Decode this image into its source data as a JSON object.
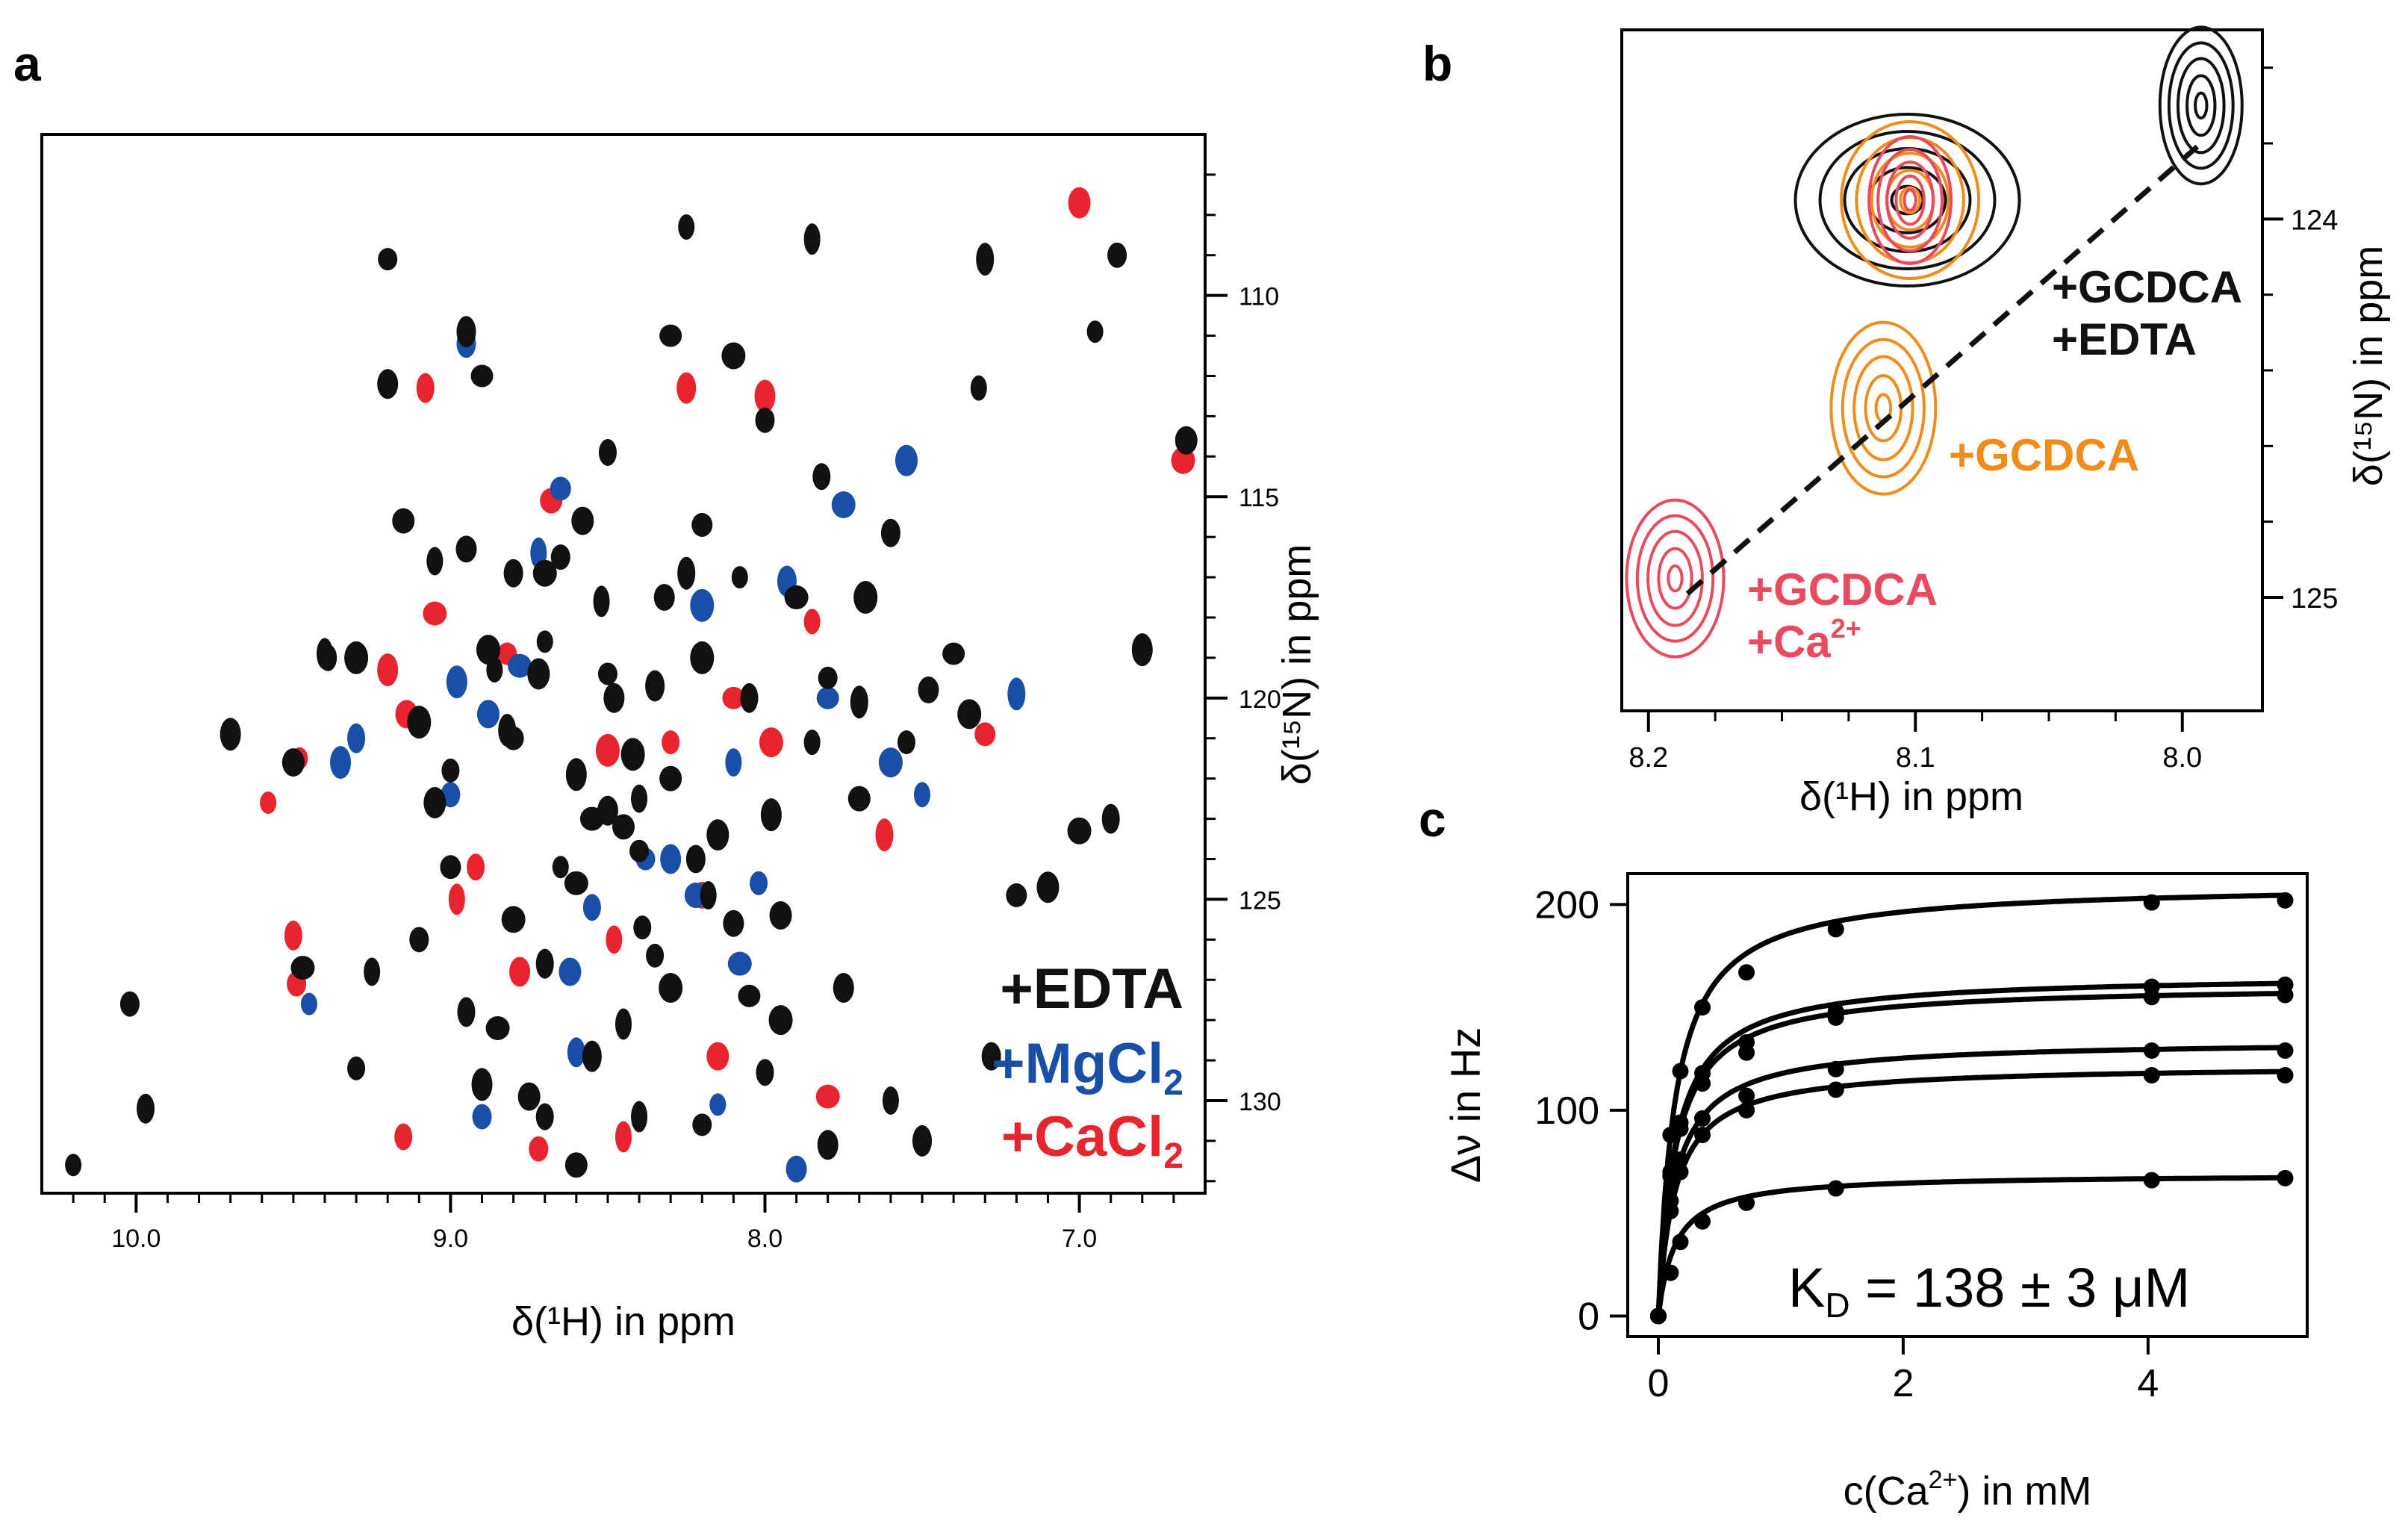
{
  "panel_labels": {
    "a": "a",
    "b": "b",
    "c": "c"
  },
  "colors": {
    "edta": "#111111",
    "mg": "#1a4fa8",
    "ca": "#e8242e",
    "gcdca": "#f08c1a",
    "gcdca_ca": "#e84a5f"
  },
  "chart_data": [
    {
      "panel": "a",
      "type": "scatter",
      "title": "",
      "xlabel": "δ(¹H) in ppm",
      "ylabel": "δ(¹⁵N) in ppm",
      "xlim": [
        10.3,
        6.6
      ],
      "ylim": [
        106.0,
        132.3
      ],
      "xticks": [
        10.0,
        9.0,
        8.0,
        7.0
      ],
      "xtick_labels": [
        "10.0",
        "9.0",
        "8.0",
        "7.0"
      ],
      "yticks": [
        110,
        115,
        120,
        125,
        130
      ],
      "ytick_labels": [
        "110",
        "115",
        "120",
        "125",
        "130"
      ],
      "legend": [
        {
          "label": "+EDTA",
          "sub": "",
          "color": "#111111"
        },
        {
          "label": "+MgCl",
          "sub": "2",
          "color": "#1a4fa8"
        },
        {
          "label": "+CaCl",
          "sub": "2",
          "color": "#e8242e"
        }
      ],
      "legend_position": "bottom-right",
      "series": [
        {
          "name": "+EDTA",
          "color": "#111111",
          "points": [
            [
              10.2,
              131.6
            ],
            [
              9.97,
              130.2
            ],
            [
              10.02,
              127.6
            ],
            [
              9.7,
              120.9
            ],
            [
              9.5,
              121.6
            ],
            [
              9.47,
              126.7
            ],
            [
              9.4,
              118.9
            ],
            [
              9.39,
              119.0
            ],
            [
              9.2,
              109.1
            ],
            [
              9.2,
              112.2
            ],
            [
              9.15,
              115.6
            ],
            [
              9.1,
              120.6
            ],
            [
              9.05,
              116.6
            ],
            [
              9.0,
              121.8
            ],
            [
              8.95,
              110.9
            ],
            [
              8.95,
              116.3
            ],
            [
              8.9,
              112.0
            ],
            [
              8.88,
              118.8
            ],
            [
              8.86,
              119.3
            ],
            [
              8.82,
              120.8
            ],
            [
              8.8,
              116.9
            ],
            [
              8.8,
              121.0
            ],
            [
              8.72,
              119.4
            ],
            [
              8.7,
              116.9
            ],
            [
              8.7,
              118.6
            ],
            [
              8.7,
              126.6
            ],
            [
              8.65,
              116.5
            ],
            [
              8.6,
              121.9
            ],
            [
              8.58,
              115.6
            ],
            [
              8.55,
              123.0
            ],
            [
              8.52,
              117.6
            ],
            [
              8.5,
              113.9
            ],
            [
              8.5,
              119.4
            ],
            [
              8.48,
              120.0
            ],
            [
              8.45,
              123.2
            ],
            [
              8.42,
              121.4
            ],
            [
              8.4,
              122.5
            ],
            [
              8.39,
              125.7
            ],
            [
              8.35,
              119.7
            ],
            [
              8.32,
              117.5
            ],
            [
              8.3,
              111.0
            ],
            [
              8.3,
              127.2
            ],
            [
              8.25,
              108.3
            ],
            [
              8.25,
              116.9
            ],
            [
              8.22,
              124.0
            ],
            [
              8.2,
              115.7
            ],
            [
              8.15,
              123.4
            ],
            [
              8.1,
              111.5
            ],
            [
              8.08,
              117.0
            ],
            [
              8.05,
              120.0
            ],
            [
              8.0,
              113.1
            ],
            [
              7.98,
              122.9
            ],
            [
              7.95,
              125.4
            ],
            [
              7.9,
              117.5
            ],
            [
              7.85,
              108.6
            ],
            [
              7.82,
              114.5
            ],
            [
              7.8,
              119.5
            ],
            [
              7.75,
              127.2
            ],
            [
              7.7,
              122.5
            ],
            [
              7.68,
              117.5
            ],
            [
              7.6,
              130.0
            ],
            [
              7.55,
              121.1
            ],
            [
              7.5,
              131.0
            ],
            [
              7.48,
              119.8
            ],
            [
              7.4,
              118.9
            ],
            [
              7.35,
              120.4
            ],
            [
              7.32,
              112.3
            ],
            [
              7.3,
              109.1
            ],
            [
              7.28,
              128.9
            ],
            [
              7.2,
              124.9
            ],
            [
              7.1,
              124.7
            ],
            [
              7.0,
              123.3
            ],
            [
              6.95,
              110.9
            ],
            [
              6.9,
              123.0
            ],
            [
              6.88,
              109.0
            ],
            [
              6.8,
              118.8
            ],
            [
              6.66,
              113.6
            ],
            [
              8.6,
              124.6
            ],
            [
              8.45,
              128.1
            ],
            [
              8.7,
              130.4
            ],
            [
              8.4,
              123.8
            ],
            [
              8.5,
              122.8
            ],
            [
              8.3,
              122.0
            ],
            [
              8.2,
              119.0
            ],
            [
              8.18,
              124.9
            ],
            [
              8.35,
              126.4
            ],
            [
              8.55,
              128.9
            ],
            [
              8.1,
              125.6
            ],
            [
              8.05,
              127.4
            ],
            [
              7.95,
              128.0
            ],
            [
              7.85,
              121.1
            ],
            [
              7.7,
              120.1
            ],
            [
              7.6,
              115.9
            ],
            [
              9.0,
              124.2
            ],
            [
              9.05,
              122.6
            ],
            [
              8.8,
              125.5
            ],
            [
              8.65,
              124.2
            ],
            [
              8.95,
              127.8
            ],
            [
              9.1,
              126.0
            ],
            [
              8.9,
              129.6
            ],
            [
              8.75,
              129.9
            ],
            [
              8.85,
              128.2
            ],
            [
              8.4,
              130.4
            ],
            [
              8.0,
              129.3
            ],
            [
              8.2,
              130.6
            ],
            [
              7.8,
              131.1
            ],
            [
              8.6,
              131.6
            ],
            [
              9.3,
              119.0
            ],
            [
              9.25,
              126.8
            ],
            [
              9.3,
              129.2
            ]
          ]
        },
        {
          "name": "+MgCl2",
          "color": "#1a4fa8",
          "points": [
            [
              9.45,
              127.6
            ],
            [
              9.3,
              121.0
            ],
            [
              9.0,
              122.4
            ],
            [
              8.98,
              119.6
            ],
            [
              8.88,
              120.4
            ],
            [
              8.78,
              119.2
            ],
            [
              8.72,
              116.4
            ],
            [
              8.55,
              125.2
            ],
            [
              8.38,
              124.0
            ],
            [
              8.3,
              124.0
            ],
            [
              8.22,
              124.9
            ],
            [
              8.2,
              117.7
            ],
            [
              8.1,
              121.6
            ],
            [
              8.02,
              124.6
            ],
            [
              7.93,
              117.1
            ],
            [
              7.9,
              131.7
            ],
            [
              7.8,
              120.0
            ],
            [
              7.6,
              121.6
            ],
            [
              7.5,
              122.4
            ],
            [
              7.2,
              119.9
            ],
            [
              8.95,
              111.2
            ],
            [
              8.65,
              114.8
            ],
            [
              7.55,
              114.1
            ],
            [
              7.75,
              115.2
            ],
            [
              8.15,
              130.1
            ],
            [
              8.6,
              128.8
            ],
            [
              8.9,
              130.4
            ],
            [
              9.35,
              121.6
            ],
            [
              8.62,
              126.8
            ],
            [
              8.08,
              126.6
            ]
          ]
        },
        {
          "name": "+CaCl2",
          "color": "#e8242e",
          "points": [
            [
              9.48,
              121.5
            ],
            [
              9.5,
              125.9
            ],
            [
              9.49,
              127.1
            ],
            [
              9.2,
              119.3
            ],
            [
              9.14,
              120.4
            ],
            [
              9.05,
              117.9
            ],
            [
              8.98,
              125.0
            ],
            [
              8.92,
              124.2
            ],
            [
              8.82,
              118.9
            ],
            [
              8.78,
              126.8
            ],
            [
              8.68,
              115.1
            ],
            [
              8.5,
              121.3
            ],
            [
              8.48,
              126.0
            ],
            [
              8.3,
              121.1
            ],
            [
              8.25,
              112.3
            ],
            [
              8.2,
              124.9
            ],
            [
              8.1,
              120.0
            ],
            [
              7.98,
              121.1
            ],
            [
              7.85,
              118.1
            ],
            [
              7.62,
              123.4
            ],
            [
              7.5,
              131.0
            ],
            [
              7.3,
              120.9
            ],
            [
              7.0,
              107.7
            ],
            [
              6.67,
              114.1
            ],
            [
              9.58,
              122.6
            ],
            [
              9.08,
              112.3
            ],
            [
              8.72,
              131.2
            ],
            [
              8.0,
              112.5
            ],
            [
              8.15,
              128.9
            ],
            [
              7.8,
              129.9
            ],
            [
              8.45,
              130.9
            ],
            [
              9.15,
              130.9
            ]
          ]
        }
      ]
    },
    {
      "panel": "b",
      "type": "contour",
      "title": "",
      "xlabel": "δ(¹H) in ppm",
      "ylabel": "δ(¹⁵N) in ppm",
      "xlim": [
        8.21,
        7.97
      ],
      "ylim": [
        123.5,
        125.3
      ],
      "xticks": [
        8.2,
        8.1,
        8.0
      ],
      "xtick_labels": [
        "8.2",
        "8.1",
        "8.0"
      ],
      "yticks": [
        124,
        125
      ],
      "ytick_labels": [
        "124",
        "125"
      ],
      "peaks": [
        {
          "name": "GCDCA+EDTA",
          "color": "#111111",
          "centers": [
            [
              8.103,
              123.95
            ],
            [
              7.993,
              123.7
            ]
          ]
        },
        {
          "name": "GCDCA",
          "color": "#f08c1a",
          "centers": [
            [
              8.102,
              123.95
            ],
            [
              8.112,
              124.5
            ]
          ]
        },
        {
          "name": "GCDCA+Ca2+",
          "color": "#e84a5f",
          "centers": [
            [
              8.102,
              123.95
            ],
            [
              8.19,
              124.95
            ]
          ]
        }
      ],
      "annotations": [
        {
          "lines": [
            "+GCDCA",
            "+EDTA"
          ],
          "color": "#111111"
        },
        {
          "lines": [
            "+GCDCA"
          ],
          "color": "#f08c1a"
        },
        {
          "lines": [
            "+GCDCA",
            "+Ca"
          ],
          "sup": "2+",
          "color": "#e84a5f"
        }
      ]
    },
    {
      "panel": "c",
      "type": "line",
      "title": "",
      "xlabel_base": "c(Ca",
      "xlabel_sup": "2+",
      "xlabel_tail": ") in mM",
      "ylabel": "Δν in Hz",
      "xlim": [
        -0.25,
        5.3
      ],
      "ylim": [
        -10,
        215
      ],
      "xticks": [
        0,
        2,
        4
      ],
      "xtick_labels": [
        "0",
        "2",
        "4"
      ],
      "yticks": [
        0,
        100,
        200
      ],
      "ytick_labels": [
        "0",
        "100",
        "200"
      ],
      "kd_label": {
        "base": "K",
        "sub": "D",
        "text": " = 138 ± 3 μM"
      },
      "kd_mM": 0.138,
      "x": [
        0,
        0.1,
        0.18,
        0.36,
        0.72,
        1.45,
        4.03,
        5.12
      ],
      "series": [
        {
          "name": "curve 1",
          "vmax": 210,
          "values": [
            0,
            88,
            119,
            150,
            167,
            188,
            201,
            202
          ]
        },
        {
          "name": "curve 2",
          "vmax": 166,
          "values": [
            0,
            70,
            94,
            118,
            133,
            148,
            160,
            161
          ]
        },
        {
          "name": "curve 3",
          "vmax": 161,
          "values": [
            0,
            68,
            91,
            113,
            128,
            145,
            155,
            156
          ]
        },
        {
          "name": "curve 4",
          "vmax": 134,
          "values": [
            0,
            56,
            76,
            96,
            107,
            120,
            129,
            129
          ]
        },
        {
          "name": "curve 5",
          "vmax": 122,
          "values": [
            0,
            51,
            70,
            88,
            100,
            110,
            117,
            117
          ]
        },
        {
          "name": "curve 6",
          "vmax": 69,
          "values": [
            0,
            21,
            36,
            46,
            55,
            62,
            66,
            67
          ]
        }
      ]
    }
  ]
}
